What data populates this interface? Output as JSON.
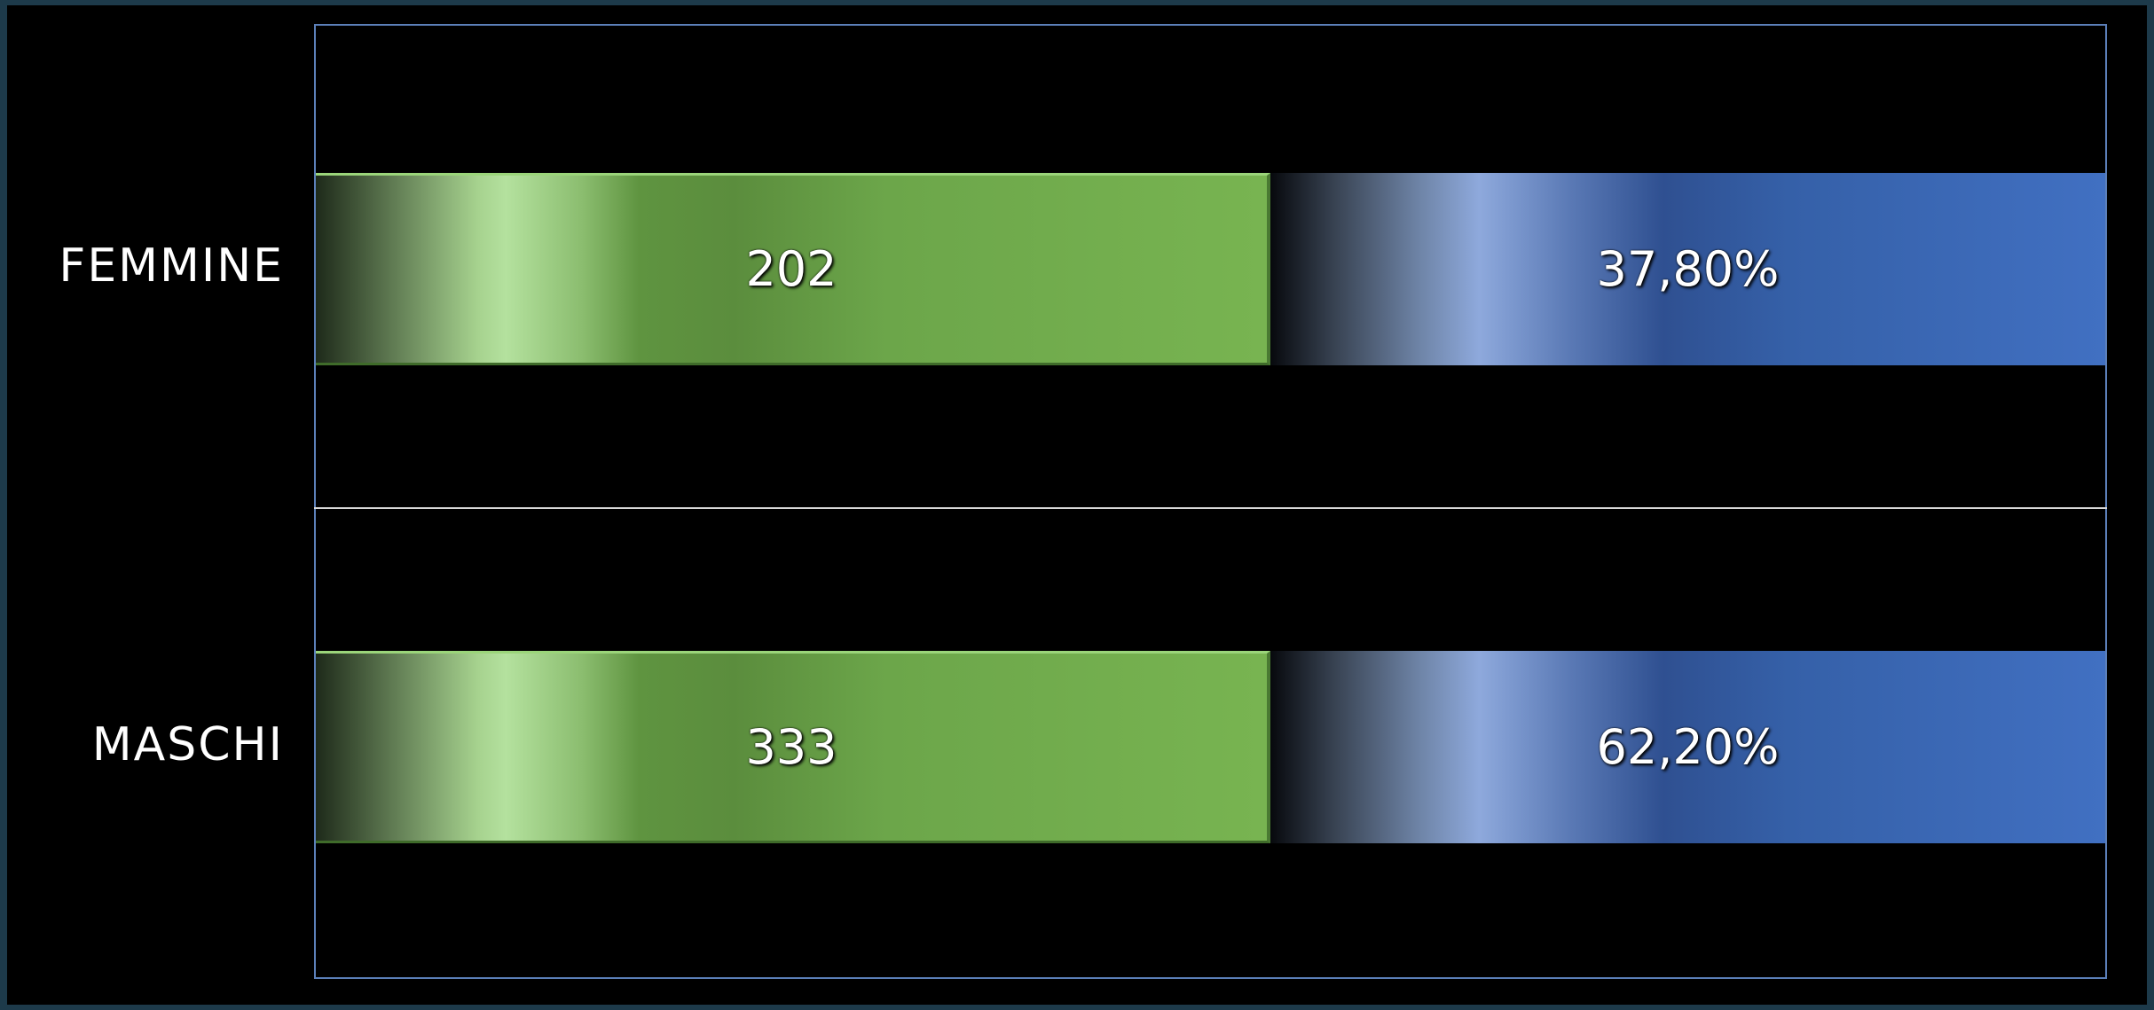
{
  "rows": [
    {
      "label": "FEMMINE",
      "count": 202,
      "percent": "37,80%"
    },
    {
      "label": "MASCHI",
      "count": 333,
      "percent": "62,20%"
    }
  ]
}
